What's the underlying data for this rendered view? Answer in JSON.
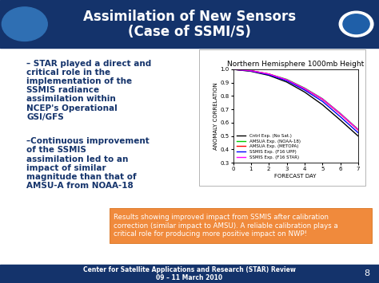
{
  "header": {
    "title": [
      "Assimilation of New Sensors",
      "(Case of SSMI/S)"
    ]
  },
  "bullets": [
    [
      "– STAR played a direct and",
      "critical role in the",
      "implementation of the",
      "SSMIS radiance",
      "assimilation within",
      "NCEP's Operational",
      "GSI/GFS"
    ],
    [
      "–Continuous improvement",
      "of the SSMIS",
      "assimilation led to an",
      "impact of similar",
      "magnitude than that of",
      "AMSU-A from NOAA-18"
    ]
  ],
  "chart_data": {
    "type": "line",
    "title": "Northern Hemisphere 1000mb Height",
    "x_label": "FORECAST DAY",
    "y_label": "ANOMALY CORRELATION",
    "x": [
      0,
      1,
      2,
      3,
      4,
      5,
      6,
      7
    ],
    "xlim": [
      0,
      7
    ],
    "xticks": [
      0,
      1,
      2,
      3,
      4,
      5,
      6,
      7
    ],
    "ylim": [
      0.3,
      1.0
    ],
    "yticks": [
      0.3,
      0.4,
      0.5,
      0.6,
      0.7,
      0.8,
      0.9,
      {
        "value": 1,
        "label": "1.0"
      }
    ],
    "legend": "lower left",
    "series": [
      {
        "name": "Cntrl Exp. (No Sat.)",
        "color": "#000000",
        "values": [
          1.0,
          0.985,
          0.955,
          0.905,
          0.83,
          0.735,
          0.62,
          0.5
        ]
      },
      {
        "name": "AMSUA Exp. (NOAA-18)",
        "color": "#00cc00",
        "values": [
          1.0,
          0.99,
          0.965,
          0.925,
          0.86,
          0.78,
          0.67,
          0.55
        ]
      },
      {
        "name": "AMSUA Exp. (METOPA)",
        "color": "#ff0000",
        "values": [
          1.0,
          0.99,
          0.965,
          0.92,
          0.855,
          0.775,
          0.665,
          0.545
        ]
      },
      {
        "name": "SSMIS Exp. (F16 UPP)",
        "color": "#0000ff",
        "values": [
          1.0,
          0.988,
          0.96,
          0.915,
          0.845,
          0.76,
          0.645,
          0.525
        ]
      },
      {
        "name": "SSMIS Exp. (F16 STAR)",
        "color": "#ff00ff",
        "values": [
          1.0,
          0.99,
          0.965,
          0.922,
          0.857,
          0.778,
          0.668,
          0.548
        ]
      }
    ]
  },
  "note": [
    "Results showing improved impact from SSMIS after calibration",
    "correction (similar impact to AMSU). A reliable calibration plays a",
    "critical role for producing more positive impact on NWP!"
  ],
  "footer": {
    "lines": [
      "Center for Satellite Applications and Research (STAR) Review",
      "09 – 11 March 2010"
    ],
    "page": "8"
  }
}
